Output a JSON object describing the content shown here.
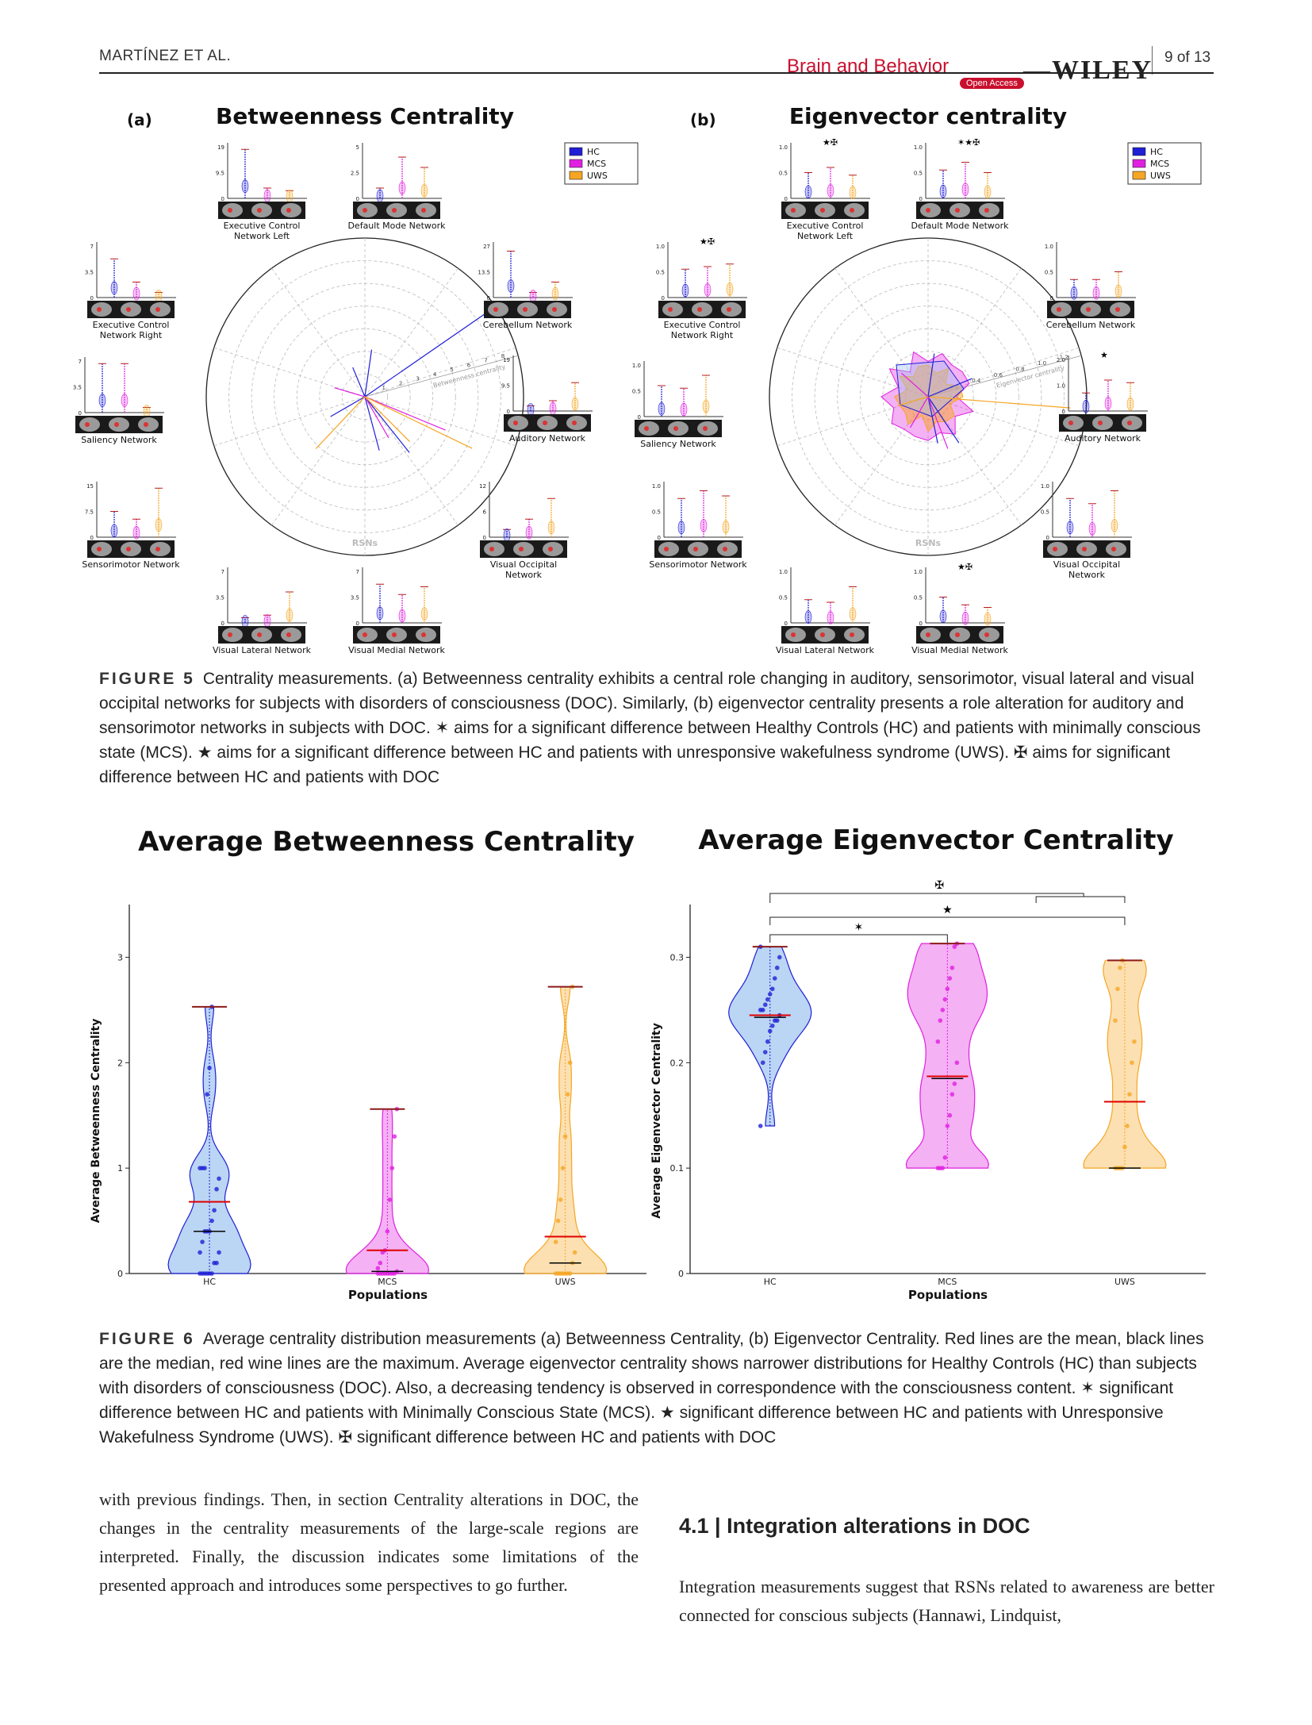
{
  "header": {
    "author": "MARTÍNEZ ET AL.",
    "journal": "Brain and Behavior",
    "open_access": "Open Access",
    "publisher": "WILEY",
    "page": "9 of 13"
  },
  "figure5": {
    "caption_label": "FIGURE 5",
    "caption_text": "Centrality measurements. (a) Betweenness centrality exhibits a central role changing in auditory, sensorimotor, visual lateral and visual occipital networks for subjects with disorders of consciousness (DOC). Similarly, (b) eigenvector centrality presents a role alteration for auditory and sensorimotor networks in subjects with DOC. ✶ aims for a significant difference between Healthy Controls (HC) and patients with minimally conscious state (MCS). ★ aims for a significant difference between HC and patients with unresponsive wakefulness syndrome (UWS). ✠ aims for significant difference between HC and patients with DOC",
    "panel_a": {
      "label": "(a)",
      "title": "Betweenness Centrality",
      "center_label": "RSNs",
      "radial_label": "Betweenness centrality"
    },
    "panel_b": {
      "label": "(b)",
      "title": "Eigenvector centrality",
      "center_label": "RSNs",
      "radial_label": "Eigenvector centrality"
    },
    "legend": [
      "HC",
      "MCS",
      "UWS"
    ],
    "networks": [
      "Executive Control Network Left",
      "Default Mode Network",
      "Executive Control Network Right",
      "Cerebellum Network",
      "Saliency Network",
      "Auditory Network",
      "Sensorimotor Network",
      "Visual Occipital Network",
      "Visual Lateral Network",
      "Visual Medial Network"
    ],
    "a_yticks": {
      "ecn_left": [
        "19",
        "9.5",
        "0"
      ],
      "dmn": [
        "5",
        "2.5",
        "0"
      ],
      "ecn_right": [
        "7",
        "3.5",
        "0"
      ],
      "cerebellum": [
        "27",
        "13.5",
        "0"
      ],
      "saliency": [
        "7",
        "3.5",
        "0"
      ],
      "auditory": [
        "19",
        "9.5",
        "0"
      ],
      "sensorimotor": [
        "15",
        "7.5",
        "0"
      ],
      "visual_occipital": [
        "12",
        "6",
        "0"
      ],
      "visual_lateral": [
        "7",
        "3.5",
        "0"
      ],
      "visual_medial": [
        "7",
        "3.5",
        "0"
      ]
    },
    "b_yticks": {
      "ecn_left": [
        "1.0",
        "0.5",
        "0"
      ],
      "dmn": [
        "1.0",
        "0.5",
        "0"
      ],
      "ecn_right": [
        "1.0",
        "0.5",
        "0"
      ],
      "cerebellum": [
        "1.0",
        "0.5",
        "0"
      ],
      "saliency": [
        "1.0",
        "0.5",
        "0"
      ],
      "auditory": [
        "2.0",
        "1.0",
        "0"
      ],
      "sensorimotor": [
        "1.0",
        "0.5",
        "0"
      ],
      "visual_occipital": [
        "1.0",
        "0.5",
        "0"
      ],
      "visual_lateral": [
        "1.0",
        "0.5",
        "0"
      ],
      "visual_medial": [
        "1.0",
        "0.5",
        "0"
      ]
    },
    "b_markers": {
      "ecn_left": "★✠",
      "dmn": "✶★✠",
      "ecn_right": "★✠",
      "auditory": "★",
      "visual_medial": "★✠"
    },
    "a_radial_ticks": [
      "1",
      "2",
      "3",
      "4",
      "5",
      "6",
      "7",
      "8"
    ],
    "b_radial_ticks": [
      "0.2",
      "0.4",
      "0.6",
      "0.8",
      "1.0",
      "1.2"
    ],
    "colors": {
      "HC": "#1f1fd6",
      "MCS": "#e020e0",
      "UWS": "#f5a623"
    }
  },
  "figure6": {
    "caption_label": "FIGURE 6",
    "caption_text": "Average centrality distribution measurements (a) Betweenness Centrality, (b) Eigenvector Centrality. Red lines are the mean, black lines are the median, red wine lines are the maximum. Average eigenvector centrality shows narrower distributions for Healthy Controls (HC) than subjects with disorders of consciousness (DOC). Also, a decreasing tendency is observed in correspondence with the consciousness content. ✶ significant difference between HC and patients with Minimally Conscious State (MCS). ★ significant difference between HC and patients with Unresponsive Wakefulness Syndrome (UWS). ✠ significant difference between HC and patients with DOC",
    "sig_markers": {
      "dmn": "✠",
      "uws": "★",
      "mcs": "✶"
    }
  },
  "chart_data": [
    {
      "type": "violin",
      "title": "Average Betweenness Centrality",
      "xlabel": "Populations",
      "ylabel": "Average Betweenness Centrality",
      "categories": [
        "HC",
        "MCS",
        "UWS"
      ],
      "ylim": [
        0,
        3.5
      ],
      "yticks": [
        "0",
        "1",
        "2",
        "3"
      ],
      "series": [
        {
          "name": "HC",
          "mean": 0.68,
          "median": 0.4,
          "max": 2.53,
          "min": 0,
          "points": [
            0,
            0,
            0,
            0,
            0,
            0,
            0.1,
            0.1,
            0.2,
            0.2,
            0.3,
            0.4,
            0.4,
            0.4,
            0.5,
            0.6,
            0.8,
            0.9,
            1.0,
            1.0,
            1.0,
            1.7,
            1.95,
            2.53
          ]
        },
        {
          "name": "MCS",
          "mean": 0.22,
          "median": 0.02,
          "max": 1.56,
          "min": 0,
          "points": [
            0,
            0,
            0,
            0,
            0,
            0,
            0,
            0,
            0.02,
            0.05,
            0.1,
            0.2,
            0.22,
            0.4,
            0.7,
            1.0,
            1.3,
            1.56
          ]
        },
        {
          "name": "UWS",
          "mean": 0.35,
          "median": 0.1,
          "max": 2.72,
          "min": 0,
          "points": [
            0,
            0,
            0,
            0,
            0,
            0,
            0,
            0.1,
            0.2,
            0.3,
            0.5,
            0.7,
            1.0,
            1.3,
            1.7,
            2.0,
            2.72
          ]
        }
      ]
    },
    {
      "type": "violin",
      "title": "Average Eigenvector Centrality",
      "xlabel": "Populations",
      "ylabel": "Average Eigenvector Centrality",
      "categories": [
        "HC",
        "MCS",
        "UWS"
      ],
      "ylim": [
        0,
        0.35
      ],
      "yticks": [
        "0",
        "0.1",
        "0.2",
        "0.3"
      ],
      "series": [
        {
          "name": "HC",
          "mean": 0.245,
          "median": 0.243,
          "max": 0.31,
          "min": 0.14,
          "points": [
            0.14,
            0.2,
            0.21,
            0.22,
            0.23,
            0.235,
            0.24,
            0.24,
            0.245,
            0.25,
            0.25,
            0.255,
            0.26,
            0.265,
            0.27,
            0.28,
            0.29,
            0.3,
            0.31
          ]
        },
        {
          "name": "MCS",
          "mean": 0.187,
          "median": 0.185,
          "max": 0.313,
          "min": 0.1,
          "points": [
            0.1,
            0.1,
            0.1,
            0.11,
            0.14,
            0.15,
            0.17,
            0.18,
            0.2,
            0.22,
            0.24,
            0.25,
            0.26,
            0.27,
            0.28,
            0.29,
            0.31,
            0.313
          ]
        },
        {
          "name": "UWS",
          "mean": 0.163,
          "median": 0.1,
          "max": 0.297,
          "min": 0.1,
          "points": [
            0.1,
            0.1,
            0.1,
            0.1,
            0.12,
            0.14,
            0.17,
            0.2,
            0.22,
            0.24,
            0.27,
            0.29,
            0.297
          ]
        }
      ]
    }
  ],
  "body": {
    "left_paragraph": "with previous findings. Then, in section Centrality alterations in DOC, the changes in the centrality measurements of the large-scale regions are interpreted. Finally, the discussion indicates some limitations of the presented approach and introduces some perspectives to go further.",
    "section_heading": "4.1  |  Integration alterations in DOC",
    "right_paragraph": "Integration measurements suggest that RSNs related to awareness are better connected for conscious subjects (Hannawi, Lindquist,"
  }
}
